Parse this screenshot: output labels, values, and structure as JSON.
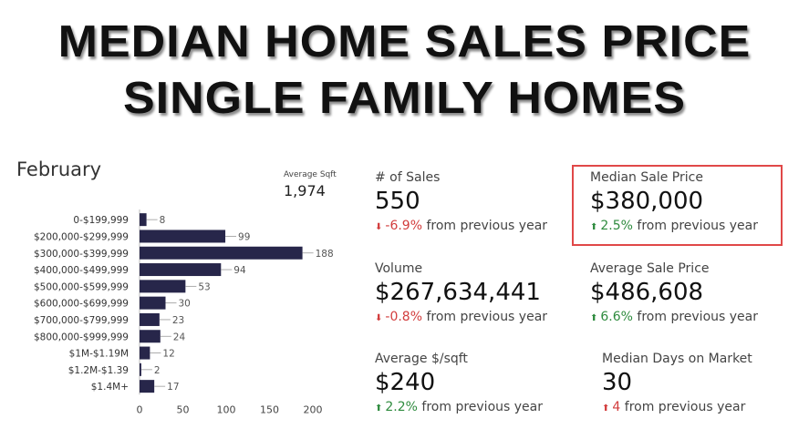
{
  "headline": {
    "line1": "MEDIAN HOME SALES PRICE",
    "line2": "SINGLE FAMILY HOMES"
  },
  "month": "February",
  "average_sqft": {
    "label": "Average Sqft",
    "value": "1,974"
  },
  "chart_data": {
    "type": "bar",
    "orientation": "horizontal",
    "categories": [
      "0-$199,999",
      "$200,000-$299,999",
      "$300,000-$399,999",
      "$400,000-$499,999",
      "$500,000-$599,999",
      "$600,000-$699,999",
      "$700,000-$799,999",
      "$800,000-$999,999",
      "$1M-$1.19M",
      "$1.2M-$1.39",
      "$1.4M+"
    ],
    "values": [
      8,
      99,
      188,
      94,
      53,
      30,
      23,
      24,
      12,
      2,
      17
    ],
    "xticks": [
      "0",
      "50",
      "100",
      "150",
      "200"
    ],
    "xlim": [
      0,
      200
    ],
    "bar_color": "#27264a"
  },
  "stats": {
    "sales": {
      "label": "# of Sales",
      "value": "550",
      "arrow": "⬇",
      "pct": "-6.9%",
      "suffix": "from previous year",
      "direction": "down"
    },
    "median_price": {
      "label": "Median Sale Price",
      "value": "$380,000",
      "arrow": "⬆",
      "pct": "2.5%",
      "suffix": "from previous year",
      "direction": "up"
    },
    "volume": {
      "label": "Volume",
      "value": "$267,634,441",
      "arrow": "⬇",
      "pct": "-0.8%",
      "suffix": "from previous year",
      "direction": "down"
    },
    "avg_price": {
      "label": "Average Sale Price",
      "value": "$486,608",
      "arrow": "⬆",
      "pct": "6.6%",
      "suffix": "from previous year",
      "direction": "up"
    },
    "avg_ppsf": {
      "label": "Average $/sqft",
      "value": "$240",
      "arrow": "⬆",
      "pct": "2.2%",
      "suffix": "from previous year",
      "direction": "up"
    },
    "days_market": {
      "label": "Median Days on Market",
      "value": "30",
      "arrow": "⬆",
      "pct": "4",
      "suffix": "from previous year",
      "direction": "down"
    }
  },
  "colors": {
    "up": "#2e8b3e",
    "down": "#d23c3c",
    "highlight": "#e04848"
  }
}
